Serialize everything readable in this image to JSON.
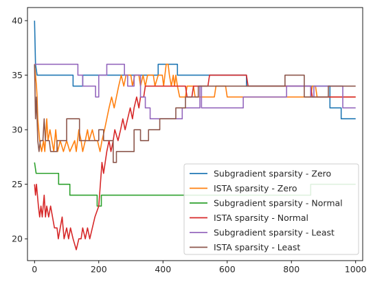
{
  "chart_data": {
    "type": "line",
    "title": "",
    "xlabel": "",
    "ylabel": "",
    "xlim": [
      -22,
      1022
    ],
    "ylim": [
      18,
      41.2
    ],
    "xticks": [
      0,
      200,
      400,
      600,
      800,
      1000
    ],
    "yticks": [
      20,
      25,
      30,
      35,
      40
    ],
    "grid": false,
    "legend_position": "lower-right",
    "series": [
      {
        "name": "Subgradient sparsity - Zero",
        "color": "#1f77b4",
        "points": [
          [
            0,
            40
          ],
          [
            3,
            36
          ],
          [
            8,
            35
          ],
          [
            120,
            35
          ],
          [
            120,
            34
          ],
          [
            150,
            34
          ],
          [
            150,
            35
          ],
          [
            385,
            35
          ],
          [
            385,
            36
          ],
          [
            445,
            36
          ],
          [
            445,
            35
          ],
          [
            660,
            35
          ],
          [
            660,
            34
          ],
          [
            920,
            34
          ],
          [
            920,
            32
          ],
          [
            955,
            32
          ],
          [
            955,
            31
          ],
          [
            1000,
            31
          ]
        ]
      },
      {
        "name": "ISTA sparsity - Zero",
        "color": "#ff7f0e",
        "points": [
          [
            0,
            36
          ],
          [
            3,
            35
          ],
          [
            6,
            34
          ],
          [
            8,
            33
          ],
          [
            10,
            31
          ],
          [
            13,
            30
          ],
          [
            16,
            29
          ],
          [
            22,
            28
          ],
          [
            28,
            29
          ],
          [
            32,
            28
          ],
          [
            38,
            31
          ],
          [
            42,
            29
          ],
          [
            48,
            30
          ],
          [
            54,
            29
          ],
          [
            60,
            28
          ],
          [
            66,
            30
          ],
          [
            72,
            28
          ],
          [
            80,
            29
          ],
          [
            90,
            28
          ],
          [
            100,
            29
          ],
          [
            110,
            28
          ],
          [
            125,
            29
          ],
          [
            130,
            28
          ],
          [
            138,
            30
          ],
          [
            145,
            29
          ],
          [
            150,
            28
          ],
          [
            158,
            29
          ],
          [
            165,
            30
          ],
          [
            170,
            29
          ],
          [
            180,
            30
          ],
          [
            188,
            29
          ],
          [
            196,
            29
          ],
          [
            204,
            28
          ],
          [
            210,
            29
          ],
          [
            218,
            30
          ],
          [
            225,
            31
          ],
          [
            232,
            32
          ],
          [
            240,
            33
          ],
          [
            248,
            32
          ],
          [
            255,
            33
          ],
          [
            262,
            34
          ],
          [
            270,
            35
          ],
          [
            278,
            34
          ],
          [
            285,
            35
          ],
          [
            300,
            35
          ],
          [
            305,
            34
          ],
          [
            312,
            35
          ],
          [
            325,
            35
          ],
          [
            330,
            34
          ],
          [
            338,
            35
          ],
          [
            345,
            34
          ],
          [
            352,
            35
          ],
          [
            370,
            35
          ],
          [
            375,
            34
          ],
          [
            385,
            35
          ],
          [
            398,
            35
          ],
          [
            402,
            34
          ],
          [
            410,
            36
          ],
          [
            416,
            36
          ],
          [
            420,
            35
          ],
          [
            426,
            34
          ],
          [
            432,
            35
          ],
          [
            436,
            34
          ],
          [
            440,
            35
          ],
          [
            445,
            34
          ],
          [
            452,
            33
          ],
          [
            470,
            33
          ],
          [
            475,
            34
          ],
          [
            495,
            34
          ],
          [
            500,
            33
          ],
          [
            560,
            33
          ],
          [
            565,
            34
          ],
          [
            595,
            34
          ],
          [
            600,
            33
          ],
          [
            860,
            33
          ],
          [
            865,
            34
          ],
          [
            875,
            34
          ],
          [
            880,
            33
          ],
          [
            1000,
            33
          ]
        ]
      },
      {
        "name": "Subgradient sparsity - Normal",
        "color": "#2ca02c",
        "points": [
          [
            0,
            27
          ],
          [
            5,
            26
          ],
          [
            75,
            26
          ],
          [
            75,
            25
          ],
          [
            110,
            25
          ],
          [
            110,
            24
          ],
          [
            195,
            24
          ],
          [
            195,
            23
          ],
          [
            208,
            23
          ],
          [
            208,
            24
          ],
          [
            860,
            24
          ],
          [
            860,
            25
          ],
          [
            1000,
            25
          ]
        ]
      },
      {
        "name": "ISTA sparsity - Normal",
        "color": "#d62728",
        "points": [
          [
            0,
            25
          ],
          [
            3,
            24
          ],
          [
            6,
            25
          ],
          [
            9,
            24
          ],
          [
            12,
            23
          ],
          [
            16,
            22
          ],
          [
            20,
            23
          ],
          [
            24,
            22
          ],
          [
            30,
            24
          ],
          [
            34,
            22
          ],
          [
            38,
            23
          ],
          [
            44,
            22
          ],
          [
            50,
            23
          ],
          [
            56,
            22
          ],
          [
            62,
            21
          ],
          [
            70,
            21
          ],
          [
            74,
            20
          ],
          [
            80,
            21
          ],
          [
            86,
            22
          ],
          [
            92,
            20
          ],
          [
            100,
            21
          ],
          [
            106,
            20
          ],
          [
            112,
            21
          ],
          [
            120,
            20
          ],
          [
            130,
            19
          ],
          [
            138,
            20
          ],
          [
            145,
            20
          ],
          [
            150,
            21
          ],
          [
            158,
            20
          ],
          [
            165,
            21
          ],
          [
            172,
            20
          ],
          [
            180,
            21
          ],
          [
            188,
            22
          ],
          [
            200,
            23
          ],
          [
            205,
            25
          ],
          [
            210,
            27
          ],
          [
            215,
            26
          ],
          [
            220,
            27
          ],
          [
            225,
            28
          ],
          [
            232,
            29
          ],
          [
            238,
            28
          ],
          [
            245,
            29
          ],
          [
            250,
            30
          ],
          [
            260,
            29
          ],
          [
            268,
            30
          ],
          [
            275,
            31
          ],
          [
            282,
            30
          ],
          [
            290,
            31
          ],
          [
            298,
            32
          ],
          [
            305,
            31
          ],
          [
            310,
            32
          ],
          [
            318,
            33
          ],
          [
            325,
            32
          ],
          [
            330,
            33
          ],
          [
            340,
            33
          ],
          [
            345,
            34
          ],
          [
            470,
            34
          ],
          [
            475,
            33
          ],
          [
            490,
            33
          ],
          [
            495,
            34
          ],
          [
            540,
            34
          ],
          [
            545,
            35
          ],
          [
            660,
            35
          ],
          [
            665,
            34
          ],
          [
            860,
            34
          ],
          [
            865,
            33
          ],
          [
            1000,
            33
          ]
        ]
      },
      {
        "name": "Subgradient sparsity - Least",
        "color": "#9467bd",
        "points": [
          [
            0,
            36
          ],
          [
            135,
            36
          ],
          [
            135,
            35
          ],
          [
            150,
            35
          ],
          [
            150,
            34
          ],
          [
            190,
            34
          ],
          [
            190,
            33
          ],
          [
            200,
            33
          ],
          [
            200,
            35
          ],
          [
            225,
            35
          ],
          [
            225,
            36
          ],
          [
            280,
            36
          ],
          [
            280,
            35
          ],
          [
            290,
            35
          ],
          [
            290,
            34
          ],
          [
            310,
            34
          ],
          [
            310,
            35
          ],
          [
            330,
            35
          ],
          [
            330,
            33
          ],
          [
            345,
            33
          ],
          [
            345,
            32
          ],
          [
            360,
            32
          ],
          [
            360,
            31
          ],
          [
            460,
            31
          ],
          [
            460,
            32
          ],
          [
            515,
            32
          ],
          [
            515,
            34
          ],
          [
            520,
            34
          ],
          [
            520,
            32
          ],
          [
            650,
            32
          ],
          [
            650,
            33
          ],
          [
            785,
            33
          ],
          [
            785,
            34
          ],
          [
            860,
            34
          ],
          [
            860,
            33
          ],
          [
            870,
            33
          ],
          [
            870,
            34
          ],
          [
            960,
            34
          ],
          [
            960,
            32
          ],
          [
            1000,
            32
          ]
        ]
      },
      {
        "name": "ISTA sparsity - Least",
        "color": "#8c564b",
        "points": [
          [
            0,
            36
          ],
          [
            3,
            31
          ],
          [
            6,
            33
          ],
          [
            10,
            29
          ],
          [
            14,
            28
          ],
          [
            18,
            29
          ],
          [
            26,
            29
          ],
          [
            30,
            31
          ],
          [
            34,
            29
          ],
          [
            46,
            29
          ],
          [
            50,
            28
          ],
          [
            70,
            28
          ],
          [
            70,
            29
          ],
          [
            100,
            29
          ],
          [
            100,
            31
          ],
          [
            140,
            31
          ],
          [
            140,
            29
          ],
          [
            200,
            29
          ],
          [
            200,
            30
          ],
          [
            215,
            30
          ],
          [
            215,
            29
          ],
          [
            245,
            29
          ],
          [
            245,
            27
          ],
          [
            255,
            27
          ],
          [
            255,
            28
          ],
          [
            310,
            28
          ],
          [
            310,
            30
          ],
          [
            330,
            30
          ],
          [
            330,
            29
          ],
          [
            355,
            29
          ],
          [
            355,
            30
          ],
          [
            390,
            30
          ],
          [
            390,
            31
          ],
          [
            440,
            31
          ],
          [
            440,
            32
          ],
          [
            470,
            32
          ],
          [
            470,
            33
          ],
          [
            510,
            33
          ],
          [
            510,
            34
          ],
          [
            780,
            34
          ],
          [
            780,
            35
          ],
          [
            840,
            35
          ],
          [
            840,
            33
          ],
          [
            915,
            33
          ],
          [
            915,
            34
          ],
          [
            1000,
            34
          ]
        ]
      }
    ]
  }
}
